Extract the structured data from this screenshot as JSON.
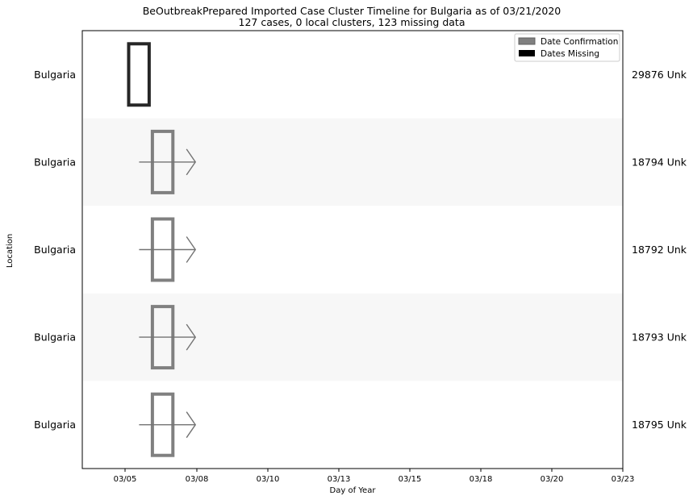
{
  "chart_data": {
    "type": "timeline",
    "title": "BeOutbreakPrepared Imported Case Cluster Timeline for Bulgaria as of 03/21/2020",
    "subtitle": "127 cases, 0 local clusters, 123 missing data",
    "xlabel": "Day of Year",
    "ylabel": "Location",
    "x_ticks": [
      "03/05",
      "03/08",
      "03/10",
      "03/13",
      "03/15",
      "03/18",
      "03/20",
      "03/23"
    ],
    "legend": {
      "position": "top-right",
      "items": [
        {
          "label": "Date Confirmation",
          "color": "#808080"
        },
        {
          "label": "Dates Missing",
          "color": "#000000"
        }
      ]
    },
    "band_color": "#f7f7f7",
    "rows": [
      {
        "location": "Bulgaria",
        "right_label": "29876 Unk",
        "box_start": "2020-03-05",
        "box_end": "2020-03-06",
        "style": "missing",
        "arrow_start": null,
        "arrow_end": null
      },
      {
        "location": "Bulgaria",
        "right_label": "18794 Unk",
        "box_start": "2020-03-06",
        "box_end": "2020-03-07",
        "style": "confirmation",
        "arrow_start": "2020-03-06",
        "arrow_end": "2020-03-08"
      },
      {
        "location": "Bulgaria",
        "right_label": "18792 Unk",
        "box_start": "2020-03-06",
        "box_end": "2020-03-07",
        "style": "confirmation",
        "arrow_start": "2020-03-06",
        "arrow_end": "2020-03-08"
      },
      {
        "location": "Bulgaria",
        "right_label": "18793 Unk",
        "box_start": "2020-03-06",
        "box_end": "2020-03-07",
        "style": "confirmation",
        "arrow_start": "2020-03-06",
        "arrow_end": "2020-03-08"
      },
      {
        "location": "Bulgaria",
        "right_label": "18795 Unk",
        "box_start": "2020-03-06",
        "box_end": "2020-03-07",
        "style": "confirmation",
        "arrow_start": "2020-03-06",
        "arrow_end": "2020-03-08"
      }
    ]
  }
}
